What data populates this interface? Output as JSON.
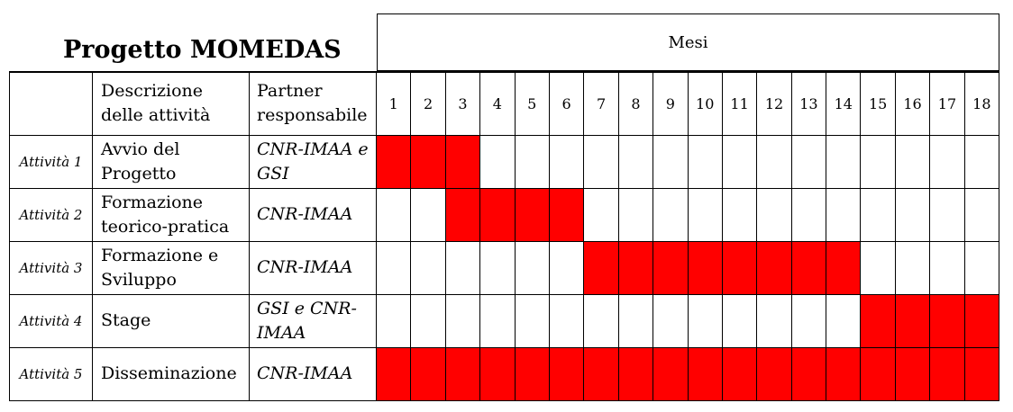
{
  "title": "Progetto MOMEDAS",
  "months_label": "Mesi",
  "colors": {
    "active": "#ff0000",
    "inactive": "#ffffff"
  },
  "headers": {
    "activity": "",
    "description": "Descrizione delle attività",
    "partner": "Partner responsabile"
  },
  "chart_data": {
    "type": "table",
    "months": [
      "1",
      "2",
      "3",
      "4",
      "5",
      "6",
      "7",
      "8",
      "9",
      "10",
      "11",
      "12",
      "13",
      "14",
      "15",
      "16",
      "17",
      "18"
    ],
    "activities": [
      {
        "label": "Attività 1",
        "description": "Avvio del Progetto",
        "partner": "CNR-IMAA e GSI",
        "start": 1,
        "end": 3
      },
      {
        "label": "Attività 2",
        "description": "Formazione teorico-pratica",
        "partner": "CNR-IMAA",
        "start": 3,
        "end": 6
      },
      {
        "label": "Attività 3",
        "description": "Formazione e Sviluppo",
        "partner": "CNR-IMAA",
        "start": 7,
        "end": 14
      },
      {
        "label": "Attività 4",
        "description": "Stage",
        "partner": "GSI e CNR-IMAA",
        "start": 15,
        "end": 18
      },
      {
        "label": "Attività 5",
        "description": "Disseminazione",
        "partner": "CNR-IMAA",
        "start": 1,
        "end": 18
      }
    ]
  }
}
